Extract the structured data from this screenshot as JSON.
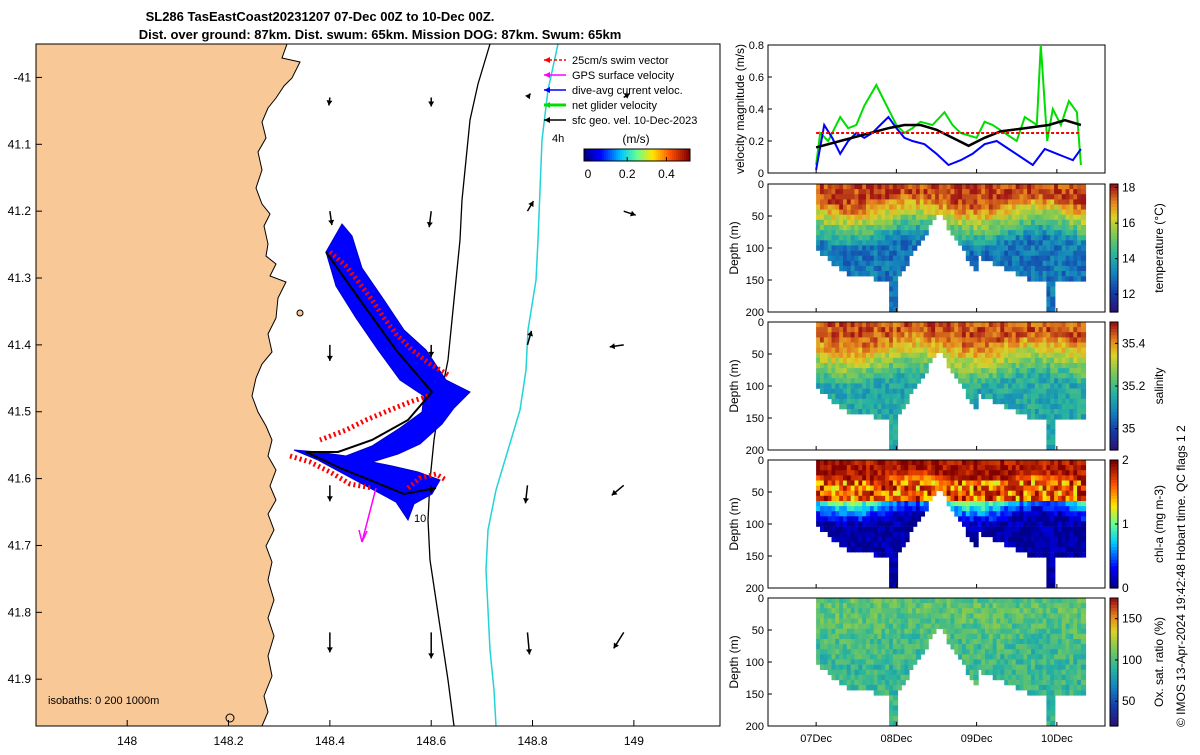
{
  "header": {
    "title_line1": "SL286 TasEastCoast20231207 07-Dec 00Z to 10-Dec 00Z.",
    "title_line2": "Dist. over ground: 87km. Dist. swum: 65km. Mission DOG: 87km. Swum: 65km"
  },
  "map": {
    "x_ticks": [
      "148",
      "148.2",
      "148.4",
      "148.6",
      "148.8",
      "149"
    ],
    "y_ticks": [
      "-41",
      "41.1",
      "41.2",
      "41.3",
      "41.4",
      "41.5",
      "41.6",
      "41.7",
      "41.8",
      "41.9"
    ],
    "xlim": [
      147.82,
      149.17
    ],
    "ylim": [
      -41.97,
      -40.95
    ],
    "isobaths_label": "isobaths: 0   200  1000m",
    "annotation_4h": "4h",
    "annotation_10": "10",
    "land_color": "#f9c897",
    "legend": [
      {
        "label": "25cm/s swim vector",
        "color": "#ff0000"
      },
      {
        "label": "GPS surface velocity",
        "color": "#ff00ff"
      },
      {
        "label": "dive-avg current veloc.",
        "color": "#0000ff"
      },
      {
        "label": "net glider velocity",
        "color": "#00dd00"
      },
      {
        "label": "sfc geo. vel. 10-Dec-2023",
        "color": "#000000"
      }
    ],
    "colorbar": {
      "title": "(m/s)",
      "ticks": [
        "0",
        "0.2",
        "0.4"
      ],
      "range": [
        -0.02,
        0.52
      ]
    }
  },
  "velocity_panel": {
    "ylabel": "velocity magnitude (m/s)",
    "y_ticks": [
      "0",
      "0.2",
      "0.4",
      "0.6",
      "0.8"
    ],
    "ylim": [
      0,
      0.8
    ],
    "xlim_days": [
      -0.6,
      3.6
    ],
    "series": [
      {
        "color": "#00dd00",
        "points": [
          [
            0.0,
            0.05
          ],
          [
            0.05,
            0.25
          ],
          [
            0.15,
            0.2
          ],
          [
            0.3,
            0.35
          ],
          [
            0.4,
            0.28
          ],
          [
            0.5,
            0.3
          ],
          [
            0.6,
            0.42
          ],
          [
            0.75,
            0.55
          ],
          [
            0.85,
            0.45
          ],
          [
            1.0,
            0.3
          ],
          [
            1.1,
            0.25
          ],
          [
            1.2,
            0.28
          ],
          [
            1.3,
            0.32
          ],
          [
            1.45,
            0.3
          ],
          [
            1.6,
            0.38
          ],
          [
            1.7,
            0.3
          ],
          [
            1.8,
            0.25
          ],
          [
            2.0,
            0.22
          ],
          [
            2.1,
            0.32
          ],
          [
            2.2,
            0.3
          ],
          [
            2.35,
            0.25
          ],
          [
            2.5,
            0.2
          ],
          [
            2.6,
            0.35
          ],
          [
            2.75,
            0.3
          ],
          [
            2.8,
            0.8
          ],
          [
            2.88,
            0.2
          ],
          [
            2.95,
            0.4
          ],
          [
            3.05,
            0.3
          ],
          [
            3.15,
            0.45
          ],
          [
            3.25,
            0.38
          ],
          [
            3.3,
            0.05
          ]
        ]
      },
      {
        "color": "#0000ff",
        "points": [
          [
            0.0,
            0.02
          ],
          [
            0.1,
            0.3
          ],
          [
            0.2,
            0.22
          ],
          [
            0.3,
            0.12
          ],
          [
            0.4,
            0.2
          ],
          [
            0.5,
            0.25
          ],
          [
            0.6,
            0.22
          ],
          [
            0.7,
            0.25
          ],
          [
            0.8,
            0.3
          ],
          [
            0.9,
            0.35
          ],
          [
            1.0,
            0.28
          ],
          [
            1.1,
            0.22
          ],
          [
            1.2,
            0.2
          ],
          [
            1.35,
            0.18
          ],
          [
            1.5,
            0.12
          ],
          [
            1.65,
            0.05
          ],
          [
            1.8,
            0.08
          ],
          [
            1.95,
            0.12
          ],
          [
            2.1,
            0.18
          ],
          [
            2.25,
            0.2
          ],
          [
            2.4,
            0.15
          ],
          [
            2.55,
            0.1
          ],
          [
            2.7,
            0.05
          ],
          [
            2.85,
            0.15
          ],
          [
            3.0,
            0.12
          ],
          [
            3.1,
            0.1
          ],
          [
            3.2,
            0.08
          ],
          [
            3.3,
            0.15
          ]
        ]
      },
      {
        "color": "#000000",
        "points": [
          [
            0.0,
            0.16
          ],
          [
            0.3,
            0.2
          ],
          [
            0.6,
            0.24
          ],
          [
            0.9,
            0.28
          ],
          [
            1.1,
            0.3
          ],
          [
            1.3,
            0.3
          ],
          [
            1.5,
            0.27
          ],
          [
            1.7,
            0.22
          ],
          [
            1.9,
            0.17
          ],
          [
            2.1,
            0.22
          ],
          [
            2.3,
            0.26
          ],
          [
            2.6,
            0.28
          ],
          [
            2.9,
            0.3
          ],
          [
            3.1,
            0.33
          ],
          [
            3.3,
            0.3
          ]
        ]
      },
      {
        "color": "#ff0000",
        "dashed": true,
        "points": [
          [
            0.0,
            0.25
          ],
          [
            3.3,
            0.25
          ]
        ]
      }
    ]
  },
  "sections": [
    {
      "name": "temperature",
      "label": "temperature (°C)",
      "cbar_ticks": [
        "12",
        "14",
        "16",
        "18"
      ],
      "cbar_vals": [
        12,
        14,
        16,
        18
      ],
      "range": [
        11.0,
        18.2
      ],
      "colormap": "haline",
      "surface": 17.8,
      "deep": 13.0
    },
    {
      "name": "salinity",
      "label": "salinity",
      "cbar_ticks": [
        "35",
        "35.2",
        "35.4"
      ],
      "cbar_vals": [
        35.0,
        35.2,
        35.4
      ],
      "range": [
        34.9,
        35.5
      ],
      "colormap": "haline",
      "surface": 35.45,
      "deep": 35.15
    },
    {
      "name": "chl",
      "label": "chl-a (mg m-3)",
      "cbar_ticks": [
        "0",
        "1",
        "2"
      ],
      "cbar_vals": [
        0,
        1,
        2
      ],
      "range": [
        0,
        2
      ],
      "colormap": "jet",
      "surface": 1.9,
      "deep": 0.05
    },
    {
      "name": "oxygen",
      "label": "Ox. sat. ratio (%)",
      "cbar_ticks": [
        "50",
        "100",
        "150"
      ],
      "cbar_vals": [
        50,
        100,
        150
      ],
      "range": [
        20,
        175
      ],
      "colormap": "haline",
      "surface": 105,
      "deep": 95
    }
  ],
  "section_axes": {
    "ylabel": "Depth (m)",
    "y_ticks": [
      "0",
      "50",
      "100",
      "150",
      "200"
    ],
    "ylim": [
      0,
      200
    ]
  },
  "time_axis": {
    "ticks": [
      "07Dec",
      "08Dec",
      "09Dec",
      "10Dec"
    ]
  },
  "side_text": {
    "credit": "© IMOS 13-Apr-2024 19:42:48 Hobart time. QC flags 1  2"
  }
}
